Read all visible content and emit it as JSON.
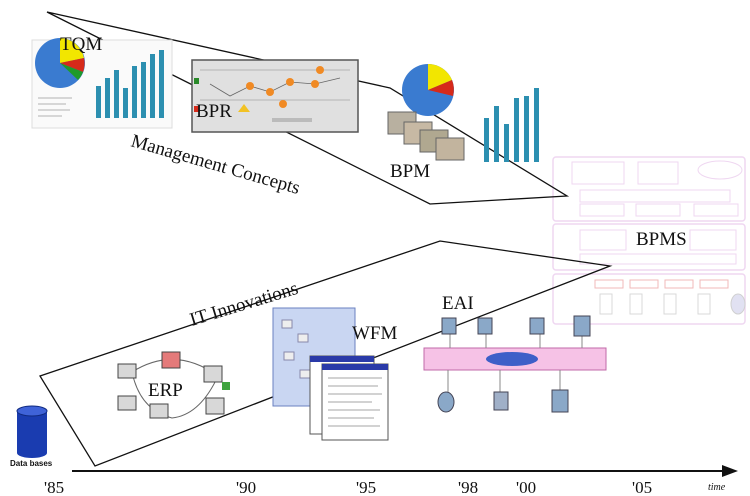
{
  "labels": {
    "tqm": "TQM",
    "bpr": "BPR",
    "bpm": "BPM",
    "bpms": "BPMS",
    "eai": "EAI",
    "wfm": "WFM",
    "erp": "ERP",
    "management_concepts": "Management Concepts",
    "it_innovations": "IT Innovations",
    "databases": "Data bases"
  },
  "timeline": {
    "ticks": [
      "'85",
      "'90",
      "'95",
      "'98",
      "'00",
      "'05"
    ],
    "axis_label": "time"
  },
  "colors": {
    "bar": "#2c8fb0",
    "pie_blue": "#3a7bd0",
    "pie_yellow": "#f2e600",
    "pie_red": "#d62a1a",
    "pie_green": "#1f9a2a",
    "bpms_outline": "#e8c6ea",
    "lan_band": "#f6c2e6",
    "db_blue": "#1a3cb0"
  }
}
